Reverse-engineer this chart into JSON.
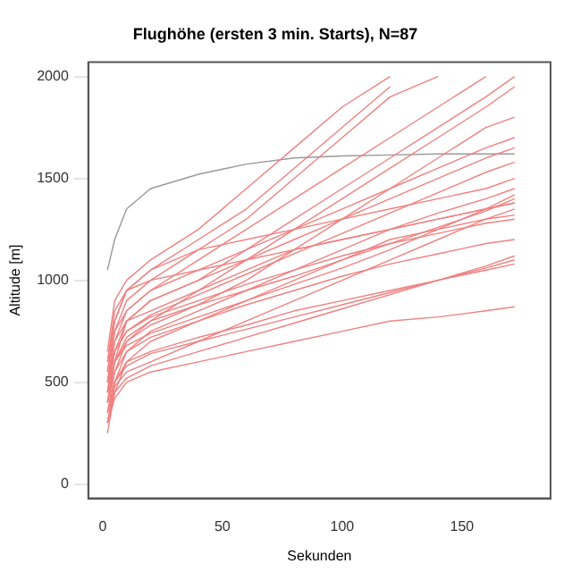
{
  "chart_data": {
    "type": "line",
    "title": "Flughöhe (ersten 3 min. Starts), N=87",
    "xlabel": "Sekunden",
    "ylabel": "Altitude [m]",
    "x": [
      2,
      5,
      10,
      20,
      40,
      60,
      80,
      100,
      120,
      140,
      160,
      172
    ],
    "xlim": [
      -6,
      187
    ],
    "xticks": [
      0,
      50,
      100,
      150
    ],
    "ylim": [
      -70,
      2070
    ],
    "yticks": [
      0,
      500,
      1000,
      1500,
      2000
    ],
    "grid": false,
    "legend": false,
    "marker": "none",
    "line_style": "solid",
    "series": [
      {
        "color": "#f08080",
        "values": [
          250,
          450,
          600,
          700,
          800,
          880,
          950,
          1020,
          1080,
          1130,
          1180,
          1200
        ]
      },
      {
        "color": "#f08080",
        "values": [
          300,
          500,
          650,
          750,
          850,
          950,
          1050,
          1150,
          1250,
          1330,
          1400,
          1450
        ]
      },
      {
        "color": "#f08080",
        "values": [
          350,
          550,
          700,
          800,
          950,
          1100,
          1250,
          1400,
          1550,
          1700,
          1850,
          1950
        ]
      },
      {
        "color": "#f08080",
        "values": [
          400,
          600,
          800,
          900,
          1000,
          1100,
          1200,
          1300,
          1400,
          1500,
          1600,
          1650
        ]
      },
      {
        "color": "#f08080",
        "values": [
          450,
          700,
          850,
          950,
          1100,
          1250,
          1400,
          1550,
          1700,
          1850,
          2000,
          null
        ]
      },
      {
        "color": "#f08080",
        "values": [
          300,
          420,
          500,
          550,
          600,
          650,
          700,
          750,
          800,
          820,
          850,
          870
        ]
      },
      {
        "color": "#f08080",
        "values": [
          500,
          750,
          900,
          1000,
          1150,
          1300,
          1500,
          1700,
          1900,
          2000,
          null,
          null
        ]
      },
      {
        "color": "#f08080",
        "values": [
          350,
          500,
          600,
          650,
          720,
          780,
          850,
          900,
          950,
          1000,
          1050,
          1080
        ]
      },
      {
        "color": "#f08080",
        "values": [
          600,
          800,
          950,
          1050,
          1150,
          1200,
          1250,
          1300,
          1350,
          1400,
          1450,
          1500
        ]
      },
      {
        "color": "#f08080",
        "values": [
          450,
          650,
          800,
          900,
          1000,
          1150,
          1300,
          1450,
          1600,
          1750,
          1900,
          2000
        ]
      },
      {
        "color": "#f08080",
        "values": [
          300,
          480,
          550,
          600,
          700,
          800,
          900,
          1000,
          1100,
          1200,
          1300,
          1350
        ]
      },
      {
        "color": "#f08080",
        "values": [
          550,
          750,
          850,
          950,
          1050,
          1150,
          1250,
          1350,
          1450,
          1550,
          1650,
          1700
        ]
      },
      {
        "color": "#f08080",
        "values": [
          400,
          550,
          650,
          720,
          800,
          900,
          1000,
          1100,
          1200,
          1250,
          1300,
          1320
        ]
      },
      {
        "color": "#f08080",
        "values": [
          500,
          700,
          800,
          850,
          950,
          1050,
          1150,
          1200,
          1250,
          1300,
          1350,
          1380
        ]
      },
      {
        "color": "#f08080",
        "values": [
          350,
          500,
          580,
          640,
          700,
          760,
          820,
          880,
          940,
          1000,
          1060,
          1100
        ]
      },
      {
        "color": "#f08080",
        "values": [
          650,
          900,
          1000,
          1100,
          1250,
          1450,
          1650,
          1850,
          2000,
          null,
          null,
          null
        ]
      },
      {
        "color": "#f08080",
        "values": [
          450,
          650,
          750,
          820,
          900,
          980,
          1050,
          1120,
          1180,
          1230,
          1280,
          1300
        ]
      },
      {
        "color": "#f08080",
        "values": [
          400,
          600,
          700,
          780,
          880,
          1000,
          1150,
          1300,
          1450,
          1600,
          1750,
          1800
        ]
      },
      {
        "color": "#f08080",
        "values": [
          550,
          800,
          950,
          1050,
          1200,
          1350,
          1550,
          1750,
          1950,
          null,
          null,
          null
        ]
      },
      {
        "color": "#f08080",
        "values": [
          300,
          450,
          520,
          580,
          650,
          720,
          790,
          860,
          930,
          1000,
          1070,
          1120
        ]
      },
      {
        "color": "#f08080",
        "values": [
          500,
          650,
          750,
          830,
          930,
          1030,
          1130,
          1230,
          1330,
          1430,
          1530,
          1580
        ]
      },
      {
        "color": "#f08080",
        "values": [
          400,
          600,
          720,
          800,
          880,
          950,
          1020,
          1100,
          1180,
          1260,
          1340,
          1400
        ]
      },
      {
        "color": "#f08080",
        "values": [
          600,
          850,
          950,
          1000,
          1050,
          1100,
          1150,
          1200,
          1250,
          1300,
          1350,
          1380
        ]
      },
      {
        "color": "#f08080",
        "values": [
          450,
          600,
          680,
          740,
          820,
          900,
          980,
          1060,
          1150,
          1250,
          1350,
          1420
        ]
      },
      {
        "color": "#999999",
        "values": [
          1050,
          1200,
          1350,
          1450,
          1520,
          1570,
          1600,
          1610,
          1615,
          1620,
          1620,
          1620
        ]
      }
    ]
  }
}
